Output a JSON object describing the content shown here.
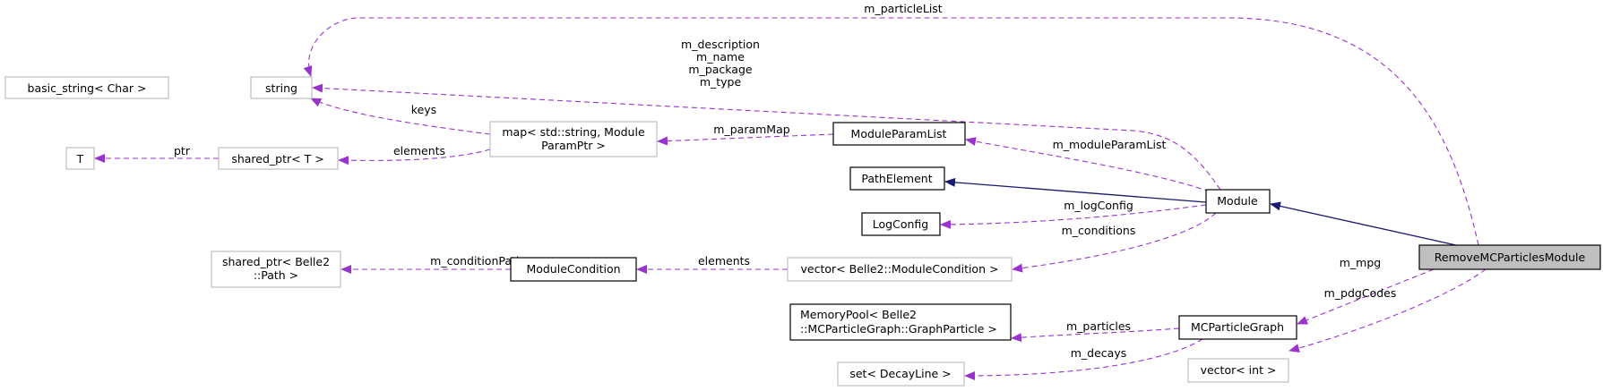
{
  "colors": {
    "usage_edge": "#9a32cd",
    "inheritance_edge": "#191970",
    "focus_node": "#bfbfbf"
  },
  "nodes": {
    "basic_string": [
      "basic_string< Char >"
    ],
    "string": [
      "string"
    ],
    "T": [
      "T"
    ],
    "shared_ptr_T": [
      "shared_ptr< T >"
    ],
    "map": [
      "map< std::string, Module",
      "ParamPtr >"
    ],
    "ModuleParamList": [
      "ModuleParamList"
    ],
    "PathElement": [
      "PathElement"
    ],
    "LogConfig": [
      "LogConfig"
    ],
    "Module": [
      "Module"
    ],
    "vector_ModuleCondition": [
      "vector< Belle2::ModuleCondition >"
    ],
    "ModuleCondition": [
      "ModuleCondition"
    ],
    "shared_ptr_Path": [
      "shared_ptr< Belle2",
      "::Path >"
    ],
    "RemoveMCParticlesModule": [
      "RemoveMCParticlesModule"
    ],
    "MCParticleGraph": [
      "MCParticleGraph"
    ],
    "vector_int": [
      "vector< int >"
    ],
    "MemoryPool": [
      "MemoryPool< Belle2",
      "::MCParticleGraph::GraphParticle >"
    ],
    "set_DecayLine": [
      "set< DecayLine >"
    ]
  },
  "edges": {
    "particleList": "m_particleList",
    "module_strings": [
      "m_description",
      "m_name",
      "m_package",
      "m_type"
    ],
    "keys": "keys",
    "map_elements": "elements",
    "ptr": "ptr",
    "paramMap": "m_paramMap",
    "moduleParamList": "m_moduleParamList",
    "logConfig": "m_logConfig",
    "conditions": "m_conditions",
    "vector_elements": "elements",
    "conditionPath": "m_conditionPath",
    "mpg": "m_mpg",
    "pdgCodes": "m_pdgCodes",
    "particles": "m_particles",
    "decays": "m_decays"
  }
}
